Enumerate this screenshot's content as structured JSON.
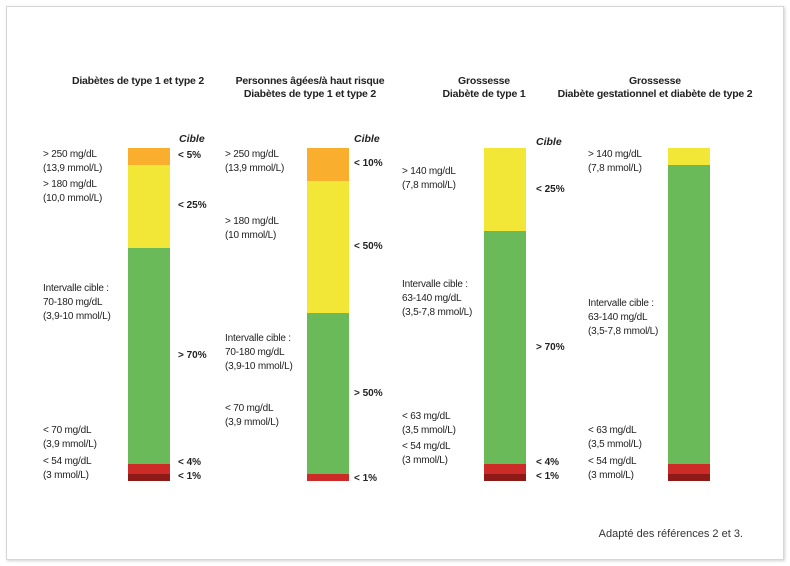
{
  "figure": {
    "source_note": "Adapté des références 2 et 3."
  },
  "colors": {
    "very_high": "#F9AE2E",
    "high": "#F2E637",
    "in_range": "#6BBA5A",
    "low": "#CC2B27",
    "very_low": "#8E1A18"
  },
  "chart_data": [
    {
      "type": "stacked-bar",
      "title_lines": [
        "Diabètes de type 1 et type 2"
      ],
      "target_header": "Cible",
      "segments": [
        {
          "key": "very_high",
          "value": 5,
          "target": "< 5%"
        },
        {
          "key": "high",
          "value": 25,
          "target": "< 25%"
        },
        {
          "key": "in_range",
          "value": 65,
          "target": "> 70%"
        },
        {
          "key": "low",
          "value": 3,
          "target": "< 4%"
        },
        {
          "key": "very_low",
          "value": 2,
          "target": "< 1%"
        }
      ],
      "range_labels": [
        {
          "lines": [
            "> 250 mg/dL",
            "(13,9 mmol/L)"
          ]
        },
        {
          "lines": [
            "> 180 mg/dL",
            "(10,0 mmol/L)"
          ]
        },
        {
          "lines": [
            "Intervalle cible :",
            "70-180 mg/dL",
            "(3,9-10 mmol/L)"
          ]
        },
        {
          "lines": [
            "< 70 mg/dL",
            "(3,9 mmol/L)"
          ]
        },
        {
          "lines": [
            "< 54 mg/dL",
            "(3 mmol/L)"
          ]
        }
      ]
    },
    {
      "type": "stacked-bar",
      "title_lines": [
        "Personnes âgées/à haut risque",
        "Diabètes de type 1 et type 2"
      ],
      "target_header": "Cible",
      "segments": [
        {
          "key": "very_high",
          "value": 10,
          "target": "< 10%"
        },
        {
          "key": "high",
          "value": 40,
          "target": "< 50%"
        },
        {
          "key": "in_range",
          "value": 49,
          "target": "> 50%"
        },
        {
          "key": "low",
          "value": 2,
          "target": "< 1%"
        }
      ],
      "range_labels": [
        {
          "lines": [
            "> 250 mg/dL",
            "(13,9 mmol/L)"
          ]
        },
        {
          "lines": [
            "> 180 mg/dL",
            "(10 mmol/L)"
          ]
        },
        {
          "lines": [
            "Intervalle cible :",
            "70-180 mg/dL",
            "(3,9-10 mmol/L)"
          ]
        },
        {
          "lines": [
            "< 70 mg/dL",
            "(3,9 mmol/L)"
          ]
        }
      ]
    },
    {
      "type": "stacked-bar",
      "title_lines": [
        "Grossesse",
        "Diabète de type 1"
      ],
      "target_header": "Cible",
      "segments": [
        {
          "key": "high",
          "value": 25,
          "target": "< 25%"
        },
        {
          "key": "in_range",
          "value": 70,
          "target": "> 70%"
        },
        {
          "key": "low",
          "value": 3,
          "target": "< 4%"
        },
        {
          "key": "very_low",
          "value": 2,
          "target": "< 1%"
        }
      ],
      "range_labels": [
        {
          "lines": [
            "> 140 mg/dL",
            "(7,8 mmol/L)"
          ]
        },
        {
          "lines": [
            "Intervalle cible :",
            "63-140 mg/dL",
            "(3,5-7,8 mmol/L)"
          ]
        },
        {
          "lines": [
            "< 63 mg/dL",
            "(3,5 mmol/L)"
          ]
        },
        {
          "lines": [
            "< 54 mg/dL",
            "(3 mmol/L)"
          ]
        }
      ]
    },
    {
      "type": "stacked-bar",
      "title_lines": [
        "Grossesse",
        "Diabète gestationnel et diabète de type 2"
      ],
      "target_header": "",
      "segments": [
        {
          "key": "high",
          "value": 5,
          "target": ""
        },
        {
          "key": "in_range",
          "value": 90,
          "target": ""
        },
        {
          "key": "low",
          "value": 3,
          "target": ""
        },
        {
          "key": "very_low",
          "value": 2,
          "target": ""
        }
      ],
      "range_labels": [
        {
          "lines": [
            "> 140 mg/dL",
            "(7,8 mmol/L)"
          ]
        },
        {
          "lines": [
            "Intervalle cible :",
            "63-140 mg/dL",
            "(3,5-7,8 mmol/L)"
          ]
        },
        {
          "lines": [
            "< 63 mg/dL",
            "(3,5 mmol/L)"
          ]
        },
        {
          "lines": [
            "< 54 mg/dL",
            "(3 mmol/L)"
          ]
        }
      ]
    }
  ]
}
